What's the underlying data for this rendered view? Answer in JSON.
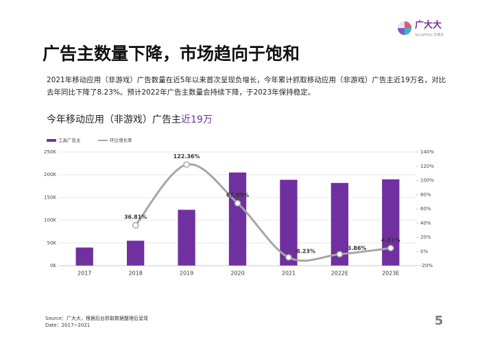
{
  "logo": {
    "name": "广大大",
    "tagline": "SocialPeta 手把手"
  },
  "heading": "广告主数量下降，市场趋向于饱和",
  "paragraph": [
    "2021年移动应用（非游戏）广告数量在近5年以来首次呈现负增长，今年累计抓取移动应用（非游戏）广告主近19万名，对比",
    "去年同比下降了8.23%。预计2022年广告主数量会持续下降，于2023年保持稳定。"
  ],
  "chart_data": {
    "type": "bar",
    "title": "今年移动应用（非游戏）广告主",
    "title_highlight": "近19万",
    "categories": [
      "2017",
      "2018",
      "2019",
      "2020",
      "2021",
      "2022E",
      "2023E"
    ],
    "series": [
      {
        "name": "工具广告主",
        "color": "#7030a0",
        "values": [
          40000,
          55000,
          123000,
          205000,
          189000,
          182000,
          190000
        ]
      },
      {
        "name": "环比增长率",
        "color": "#a6a6a6",
        "type": "line",
        "axis": "y2",
        "values": [
          null,
          36.81,
          122.36,
          67.95,
          -8.23,
          -3.86,
          4.81
        ],
        "value_labels": [
          null,
          "36.81%",
          "122.36%",
          "67.95%",
          "-8.23%",
          "-3.86%",
          "4.81%"
        ]
      }
    ],
    "ylim": [
      0,
      250000
    ],
    "yticks": [
      {
        "value": 0,
        "label": "0K"
      },
      {
        "value": 50000,
        "label": "50K"
      },
      {
        "value": 100000,
        "label": "100K"
      },
      {
        "value": 150000,
        "label": "150K"
      },
      {
        "value": 200000,
        "label": "200K"
      },
      {
        "value": 250000,
        "label": "250K"
      }
    ],
    "y2lim": [
      -20,
      140
    ],
    "y2ticks": [
      {
        "value": -20,
        "label": "-20%"
      },
      {
        "value": 0,
        "label": "0%"
      },
      {
        "value": 20,
        "label": "20%"
      },
      {
        "value": 40,
        "label": "40%"
      },
      {
        "value": 60,
        "label": "60%"
      },
      {
        "value": 80,
        "label": "80%"
      },
      {
        "value": 100,
        "label": "100%"
      },
      {
        "value": 120,
        "label": "120%"
      },
      {
        "value": 140,
        "label": "140%"
      }
    ],
    "grid": true,
    "legend": "top-left"
  },
  "source": [
    "Source：广大大，根据后台抓取数据整理后呈现",
    "Date：2017~2021"
  ],
  "page_number": "5"
}
